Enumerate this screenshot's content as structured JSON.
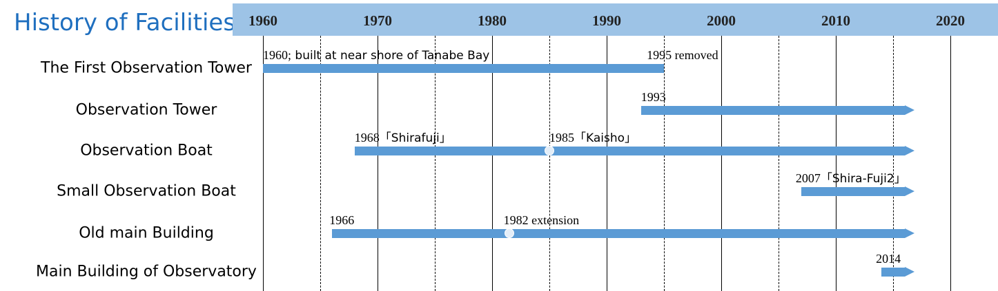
{
  "title": "History of Facilities",
  "years": [
    "1960",
    "1970",
    "1980",
    "1990",
    "2000",
    "2010",
    "2020"
  ],
  "rows": [
    {
      "label": "The First Observation Tower",
      "start": 1960,
      "end": 1995,
      "arrow": false,
      "annotations": [
        {
          "year": "1960;",
          "text": " built at near shore of Tanabe Bay",
          "at": 1960
        },
        {
          "year": "1995",
          "text": " removed",
          "at": 1993.5
        }
      ],
      "markers": []
    },
    {
      "label": "Observation Tower",
      "start": 1993,
      "end": 2016,
      "arrow": true,
      "annotations": [
        {
          "year": "1993",
          "text": "",
          "at": 1993
        }
      ],
      "markers": []
    },
    {
      "label": "Observation Boat",
      "start": 1968,
      "end": 2016,
      "arrow": true,
      "annotations": [
        {
          "year": "1968",
          "text": "「Shirafuji」",
          "at": 1968
        },
        {
          "year": "1985",
          "text": "「Kaisho」",
          "at": 1985
        }
      ],
      "markers": [
        1985
      ]
    },
    {
      "label": "Small Observation Boat",
      "start": 2007,
      "end": 2016,
      "arrow": true,
      "annotations": [
        {
          "year": "2007",
          "text": "「Shira-Fuji2」",
          "at": 2006.5
        }
      ],
      "markers": []
    },
    {
      "label": "Old main Building",
      "start": 1966,
      "end": 2016,
      "arrow": true,
      "annotations": [
        {
          "year": "1966",
          "text": "",
          "at": 1965.8
        },
        {
          "year": "1982",
          "text": " extension",
          "at": 1981
        }
      ],
      "markers": [
        1981.5
      ]
    },
    {
      "label": "Main Building of Observatory",
      "start": 2014,
      "end": 2016,
      "arrow": true,
      "annotations": [
        {
          "year": "2014",
          "text": "",
          "at": 2013.5
        }
      ],
      "markers": []
    }
  ],
  "colors": {
    "bar": "#5b9bd5",
    "header": "#9dc3e6",
    "title": "#1f6fbf"
  }
}
